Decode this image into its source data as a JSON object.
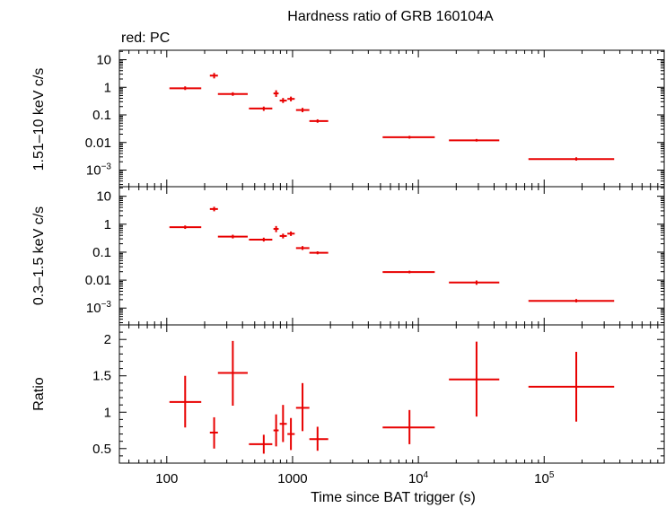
{
  "chart_data": {
    "type": "scatter",
    "title": "Hardness ratio of GRB 160104A",
    "legend_note": "red: PC",
    "xlabel": "Time since BAT trigger (s)",
    "x_scale": "log",
    "xlim": [
      42,
      900000
    ],
    "x_tick_labels": [
      {
        "value": 100,
        "label": "100"
      },
      {
        "value": 1000,
        "label": "1000"
      },
      {
        "value": 10000,
        "label": "10",
        "sup": "4"
      },
      {
        "value": 100000,
        "label": "10",
        "sup": "5"
      }
    ],
    "series_color": "#e80000",
    "panels": [
      {
        "id": "hard",
        "ylabel": "1.51–10 keV c/s",
        "y_scale": "log",
        "ylim": [
          0.00025,
          22
        ],
        "y_tick_labels": [
          {
            "value": 10,
            "label": "10"
          },
          {
            "value": 1,
            "label": "1"
          },
          {
            "value": 0.1,
            "label": "0.1"
          },
          {
            "value": 0.01,
            "label": "0.01"
          },
          {
            "value": 0.001,
            "label": "10",
            "sup": "−3"
          }
        ],
        "points": [
          {
            "x": 140,
            "xlo": 105,
            "xhi": 188,
            "y": 0.92,
            "ylo": 0.8,
            "yhi": 1.08
          },
          {
            "x": 238,
            "xlo": 220,
            "xhi": 255,
            "y": 2.65,
            "ylo": 2.1,
            "yhi": 3.3
          },
          {
            "x": 335,
            "xlo": 255,
            "xhi": 440,
            "y": 0.57,
            "ylo": 0.49,
            "yhi": 0.66
          },
          {
            "x": 590,
            "xlo": 450,
            "xhi": 690,
            "y": 0.17,
            "ylo": 0.14,
            "yhi": 0.2
          },
          {
            "x": 740,
            "xlo": 705,
            "xhi": 775,
            "y": 0.6,
            "ylo": 0.45,
            "yhi": 0.78
          },
          {
            "x": 840,
            "xlo": 790,
            "xhi": 900,
            "y": 0.33,
            "ylo": 0.27,
            "yhi": 0.41
          },
          {
            "x": 970,
            "xlo": 910,
            "xhi": 1040,
            "y": 0.38,
            "ylo": 0.31,
            "yhi": 0.46
          },
          {
            "x": 1200,
            "xlo": 1065,
            "xhi": 1360,
            "y": 0.15,
            "ylo": 0.125,
            "yhi": 0.18
          },
          {
            "x": 1580,
            "xlo": 1360,
            "xhi": 1920,
            "y": 0.06,
            "ylo": 0.052,
            "yhi": 0.069
          },
          {
            "x": 8500,
            "xlo": 5200,
            "xhi": 13500,
            "y": 0.0155,
            "ylo": 0.0138,
            "yhi": 0.0174
          },
          {
            "x": 29000,
            "xlo": 17500,
            "xhi": 44000,
            "y": 0.012,
            "ylo": 0.0108,
            "yhi": 0.0134
          },
          {
            "x": 180000,
            "xlo": 75000,
            "xhi": 360000,
            "y": 0.0025,
            "ylo": 0.0022,
            "yhi": 0.0029
          }
        ]
      },
      {
        "id": "soft",
        "ylabel": "0.3–1.5 keV c/s",
        "y_scale": "log",
        "ylim": [
          0.00025,
          22
        ],
        "y_tick_labels": [
          {
            "value": 10,
            "label": "10"
          },
          {
            "value": 1,
            "label": "1"
          },
          {
            "value": 0.1,
            "label": "0.1"
          },
          {
            "value": 0.01,
            "label": "0.01"
          },
          {
            "value": 0.001,
            "label": "10",
            "sup": "−3"
          }
        ],
        "points": [
          {
            "x": 140,
            "xlo": 105,
            "xhi": 188,
            "y": 0.78,
            "ylo": 0.68,
            "yhi": 0.9
          },
          {
            "x": 238,
            "xlo": 220,
            "xhi": 255,
            "y": 3.5,
            "ylo": 2.9,
            "yhi": 4.2
          },
          {
            "x": 335,
            "xlo": 255,
            "xhi": 440,
            "y": 0.36,
            "ylo": 0.31,
            "yhi": 0.42
          },
          {
            "x": 590,
            "xlo": 450,
            "xhi": 690,
            "y": 0.28,
            "ylo": 0.24,
            "yhi": 0.33
          },
          {
            "x": 740,
            "xlo": 705,
            "xhi": 775,
            "y": 0.68,
            "ylo": 0.52,
            "yhi": 0.86
          },
          {
            "x": 840,
            "xlo": 790,
            "xhi": 900,
            "y": 0.38,
            "ylo": 0.31,
            "yhi": 0.46
          },
          {
            "x": 970,
            "xlo": 910,
            "xhi": 1040,
            "y": 0.46,
            "ylo": 0.38,
            "yhi": 0.55
          },
          {
            "x": 1200,
            "xlo": 1065,
            "xhi": 1360,
            "y": 0.14,
            "ylo": 0.12,
            "yhi": 0.165
          },
          {
            "x": 1580,
            "xlo": 1360,
            "xhi": 1920,
            "y": 0.095,
            "ylo": 0.084,
            "yhi": 0.107
          },
          {
            "x": 8500,
            "xlo": 5200,
            "xhi": 13500,
            "y": 0.0195,
            "ylo": 0.0175,
            "yhi": 0.0217
          },
          {
            "x": 29000,
            "xlo": 17500,
            "xhi": 44000,
            "y": 0.0082,
            "ylo": 0.0068,
            "yhi": 0.0097
          },
          {
            "x": 180000,
            "xlo": 75000,
            "xhi": 360000,
            "y": 0.0018,
            "ylo": 0.0016,
            "yhi": 0.0021
          }
        ]
      },
      {
        "id": "ratio",
        "ylabel": "Ratio",
        "y_scale": "linear",
        "ylim": [
          0.3,
          2.2
        ],
        "y_tick_labels": [
          {
            "value": 0.5,
            "label": "0.5"
          },
          {
            "value": 1,
            "label": "1"
          },
          {
            "value": 1.5,
            "label": "1.5"
          },
          {
            "value": 2,
            "label": "2"
          }
        ],
        "points": [
          {
            "x": 140,
            "xlo": 105,
            "xhi": 188,
            "y": 1.14,
            "ylo": 0.79,
            "yhi": 1.5
          },
          {
            "x": 238,
            "xlo": 220,
            "xhi": 255,
            "y": 0.72,
            "ylo": 0.5,
            "yhi": 0.93
          },
          {
            "x": 335,
            "xlo": 255,
            "xhi": 440,
            "y": 1.54,
            "ylo": 1.09,
            "yhi": 1.98
          },
          {
            "x": 590,
            "xlo": 450,
            "xhi": 690,
            "y": 0.56,
            "ylo": 0.43,
            "yhi": 0.69
          },
          {
            "x": 740,
            "xlo": 705,
            "xhi": 775,
            "y": 0.75,
            "ylo": 0.53,
            "yhi": 0.97
          },
          {
            "x": 840,
            "xlo": 790,
            "xhi": 900,
            "y": 0.84,
            "ylo": 0.59,
            "yhi": 1.1
          },
          {
            "x": 970,
            "xlo": 910,
            "xhi": 1040,
            "y": 0.7,
            "ylo": 0.48,
            "yhi": 0.92
          },
          {
            "x": 1200,
            "xlo": 1065,
            "xhi": 1360,
            "y": 1.06,
            "ylo": 0.74,
            "yhi": 1.4
          },
          {
            "x": 1580,
            "xlo": 1360,
            "xhi": 1920,
            "y": 0.63,
            "ylo": 0.47,
            "yhi": 0.8
          },
          {
            "x": 8500,
            "xlo": 5200,
            "xhi": 13500,
            "y": 0.79,
            "ylo": 0.56,
            "yhi": 1.03
          },
          {
            "x": 29000,
            "xlo": 17500,
            "xhi": 44000,
            "y": 1.45,
            "ylo": 0.94,
            "yhi": 1.97
          },
          {
            "x": 180000,
            "xlo": 75000,
            "xhi": 360000,
            "y": 1.35,
            "ylo": 0.87,
            "yhi": 1.83
          }
        ]
      }
    ]
  }
}
